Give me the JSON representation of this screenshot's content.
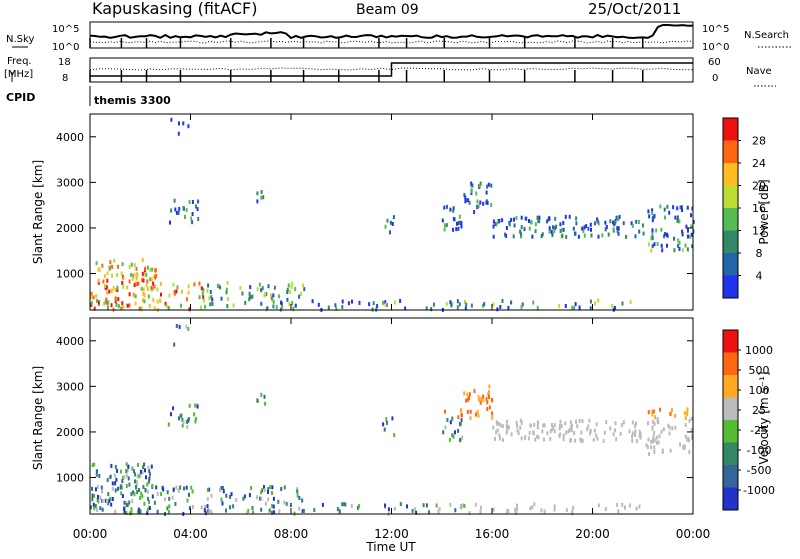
{
  "header": {
    "station": "Kapuskasing (fitACF)",
    "beam": "Beam 09",
    "date": "25/Oct/2011"
  },
  "summary_panels": {
    "nsky_label": "N.Sky",
    "nsearch_label": "N.Search",
    "nsky_ticks": [
      "10^5",
      "10^0"
    ],
    "nsearch_ticks": [
      "10^5",
      "10^0"
    ],
    "freq_label_1": "Freq.",
    "freq_label_2": "[MHz]",
    "freq_ticks": [
      "18",
      "8"
    ],
    "nave_label": "Nave",
    "nave_ticks": [
      "60",
      "0"
    ],
    "cpid_label": "CPID",
    "cpid_value": "themis 3300"
  },
  "chart_data": [
    {
      "type": "heatmap",
      "panel": "power",
      "ylabel": "Slant Range [km]",
      "ylim": [
        200,
        4500
      ],
      "yticks": [
        1000,
        2000,
        3000,
        4000
      ],
      "colorbar_label": "Power [dB]",
      "colorbar_ticks": [
        "28",
        "24",
        "20",
        "16",
        "12",
        "8",
        "4"
      ],
      "colors": [
        "#2233ee",
        "#2266aa",
        "#338866",
        "#55bb55",
        "#bbdd33",
        "#ffbb22",
        "#ff6611",
        "#ee1111"
      ]
    },
    {
      "type": "heatmap",
      "panel": "velocity",
      "ylabel": "Slant Range [km]",
      "xlabel": "Time UT",
      "ylim": [
        200,
        4500
      ],
      "yticks": [
        1000,
        2000,
        3000,
        4000
      ],
      "xticks": [
        "00:00",
        "04:00",
        "08:00",
        "12:00",
        "16:00",
        "20:00",
        "00:00"
      ],
      "colorbar_label": "Velocity [m s⁻¹]",
      "colorbar_ticks": [
        "1000",
        "500",
        "100",
        "25",
        "-25",
        "-100",
        "-500",
        "-1000"
      ],
      "colors": [
        "#2233cc",
        "#336699",
        "#338866",
        "#55bb33",
        "#bbbbbb",
        "#ffaa22",
        "#ff6611",
        "#ee1111"
      ]
    }
  ]
}
